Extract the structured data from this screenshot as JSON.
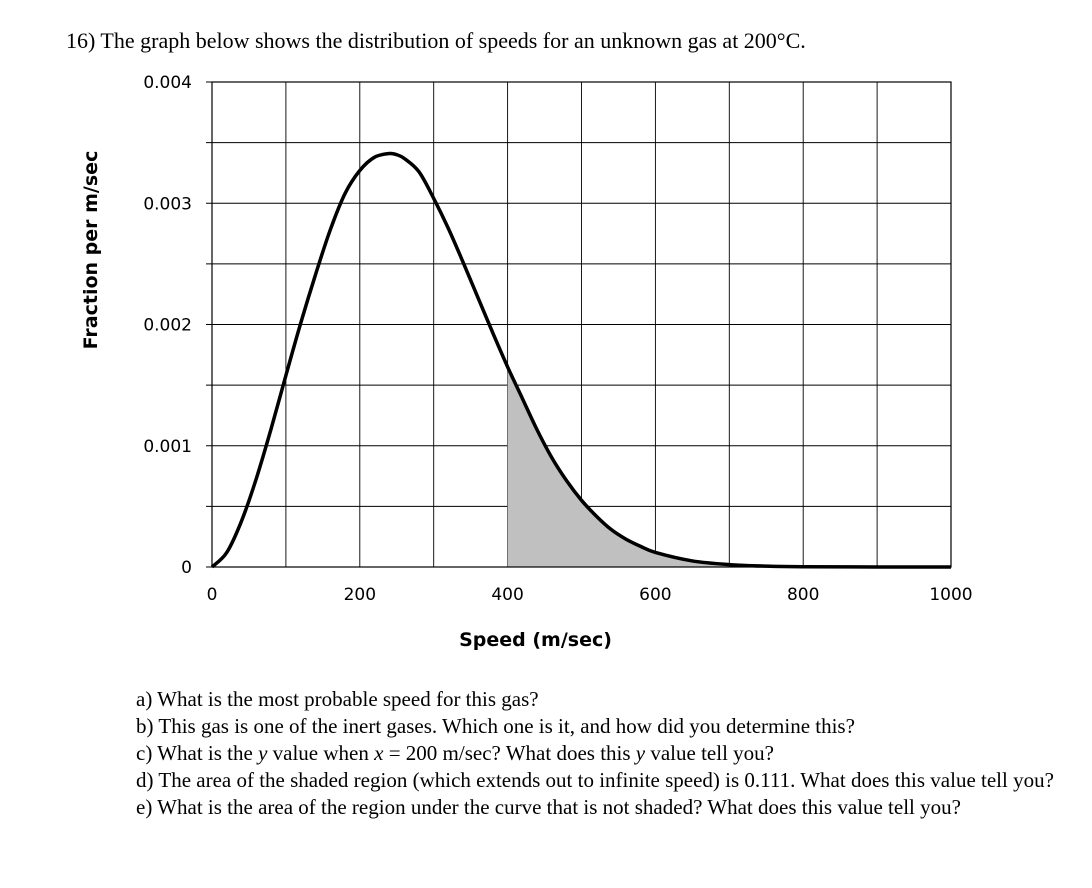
{
  "problem": {
    "title": "16) The graph below shows the distribution of speeds for an unknown gas at 200°C."
  },
  "chart_data": {
    "type": "area",
    "xlabel": "Speed (m/sec)",
    "ylabel": "Fraction per m/sec",
    "xlim": [
      0,
      1000
    ],
    "ylim": [
      0,
      0.004
    ],
    "x_ticks": [
      "0",
      "200",
      "400",
      "600",
      "800",
      "1000"
    ],
    "y_ticks": [
      "0",
      "0.001",
      "0.002",
      "0.003",
      "0.004"
    ],
    "x_grid_step": 100,
    "y_grid_step": 0.0005,
    "grid": true,
    "series": [
      {
        "x": [
          0,
          20,
          40,
          60,
          80,
          100,
          120,
          140,
          160,
          180,
          200,
          220,
          240,
          250,
          260,
          280,
          300,
          320,
          340,
          360,
          380,
          400,
          420,
          440,
          460,
          480,
          500,
          520,
          540,
          560,
          580,
          600,
          650,
          700,
          750,
          800,
          900,
          1000
        ],
        "y": [
          0,
          0.00012,
          0.00038,
          0.00073,
          0.00114,
          0.00158,
          0.00201,
          0.00241,
          0.00278,
          0.00308,
          0.00327,
          0.00338,
          0.00341,
          0.0034,
          0.00337,
          0.00326,
          0.00304,
          0.00279,
          0.00251,
          0.00222,
          0.00193,
          0.00165,
          0.00139,
          0.00113,
          0.0009,
          0.00071,
          0.00055,
          0.00042,
          0.00031,
          0.00023,
          0.00017,
          0.00012,
          5e-05,
          2e-05,
          7e-06,
          2e-06,
          2e-07,
          0
        ]
      }
    ],
    "shaded_region": {
      "from_x": 400,
      "color": "#c0c0c0"
    },
    "line_color": "#000000"
  },
  "questions": {
    "a": "a) What is the most probable speed for this gas?",
    "b": "b) This gas is one of the inert gases.  Which one is it, and how did you determine this?",
    "c_pre": "c) What is the ",
    "c_y1": "y",
    "c_mid1": " value when ",
    "c_x": "x",
    "c_mid2": " = 200 m/sec?  What does this ",
    "c_y2": "y",
    "c_post": " value tell you?",
    "d": "d) The area of the shaded region (which extends out to infinite speed) is 0.111.  What does this value tell you?",
    "e": "e) What is the area of the region under the curve that is not shaded?  What does this value tell you?"
  }
}
